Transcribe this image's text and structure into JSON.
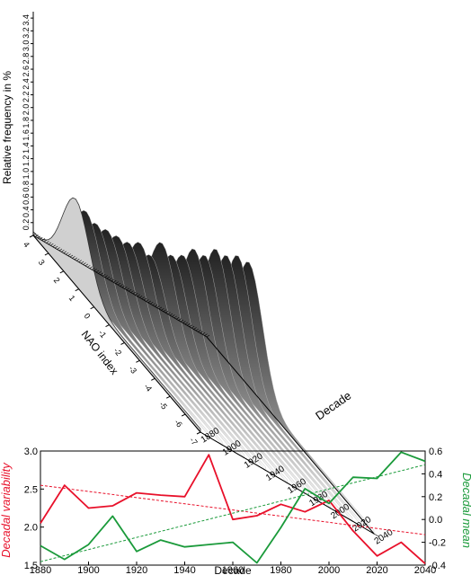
{
  "chart_data": [
    {
      "type": "area",
      "subtype": "3d-ridgeline",
      "zlabel": "Relative frequency in %",
      "ylabel": "NAO index",
      "xlabel": "Decade",
      "z_ticks": [
        "0.2",
        "0.4",
        "0.6",
        "0.8",
        "1.0",
        "1.2",
        "1.4",
        "1.6",
        "1.8",
        "2.0",
        "2.2",
        "2.4",
        "2.6",
        "2.8",
        "3.0",
        "3.2",
        "3.4"
      ],
      "nao_ticks": [
        "4",
        "3",
        "2",
        "1",
        "0",
        "-1",
        "-2",
        "-3",
        "-4",
        "-5",
        "-6",
        "-7"
      ],
      "decade_ticks": [
        "1880",
        "1900",
        "1920",
        "1940",
        "1960",
        "1980",
        "2000",
        "2020",
        "2040"
      ],
      "zlim": [
        0,
        3.5
      ],
      "ridge_peaks": [
        {
          "decade": 1880,
          "peak_frequency": 1.3
        },
        {
          "decade": 1890,
          "peak_frequency": 1.2
        },
        {
          "decade": 1900,
          "peak_frequency": 1.1
        },
        {
          "decade": 1910,
          "peak_frequency": 1.1
        },
        {
          "decade": 1920,
          "peak_frequency": 1.1
        },
        {
          "decade": 1930,
          "peak_frequency": 1.1
        },
        {
          "decade": 1940,
          "peak_frequency": 1.2
        },
        {
          "decade": 1950,
          "peak_frequency": 1.1
        },
        {
          "decade": 1960,
          "peak_frequency": 1.4
        },
        {
          "decade": 1970,
          "peak_frequency": 1.3
        },
        {
          "decade": 1980,
          "peak_frequency": 1.4
        },
        {
          "decade": 1990,
          "peak_frequency": 1.6
        },
        {
          "decade": 2000,
          "peak_frequency": 1.6
        },
        {
          "decade": 2010,
          "peak_frequency": 1.8
        },
        {
          "decade": 2020,
          "peak_frequency": 1.8
        },
        {
          "decade": 2030,
          "peak_frequency": 1.9
        },
        {
          "decade": 2040,
          "peak_frequency": 1.9
        }
      ],
      "colors": {
        "front_fill": "#d0d0d0",
        "back_dark": "#2a2a2a",
        "back_light": "#ffffff"
      }
    },
    {
      "type": "line",
      "xlabel": "Decade",
      "ylabel_left": "Decadal variability",
      "ylabel_right": "Decadal mean",
      "x": [
        1880,
        1890,
        1900,
        1910,
        1920,
        1930,
        1940,
        1950,
        1960,
        1970,
        1980,
        1990,
        2000,
        2010,
        2020,
        2030,
        2040
      ],
      "xlim": [
        1880,
        2040
      ],
      "x_ticks": [
        "1880",
        "1900",
        "1920",
        "1940",
        "1960",
        "1980",
        "2000",
        "2020",
        "2040"
      ],
      "ylim_left": [
        1.5,
        3.0
      ],
      "y_ticks_left": [
        "1.5",
        "2.0",
        "2.5",
        "3.0"
      ],
      "ylim_right": [
        -0.4,
        0.6
      ],
      "y_ticks_right": [
        "-0.4",
        "-0.2",
        "0.0",
        "0.2",
        "0.4",
        "0.6"
      ],
      "series": [
        {
          "name": "Decadal variability",
          "axis": "left",
          "color": "#e8102a",
          "values": [
            2.05,
            2.55,
            2.25,
            2.28,
            2.45,
            2.42,
            2.4,
            2.95,
            2.1,
            2.15,
            2.3,
            2.2,
            2.35,
            1.95,
            1.62,
            1.8,
            1.52
          ],
          "trend": [
            2.55,
            1.9
          ]
        },
        {
          "name": "Decadal mean",
          "axis": "right",
          "color": "#1a9a3a",
          "values": [
            -0.23,
            -0.35,
            -0.22,
            0.03,
            -0.28,
            -0.18,
            -0.24,
            -0.22,
            -0.2,
            -0.38,
            -0.07,
            0.27,
            0.14,
            0.37,
            0.36,
            0.59,
            0.51
          ],
          "trend": [
            -0.37,
            0.48
          ]
        }
      ]
    }
  ]
}
